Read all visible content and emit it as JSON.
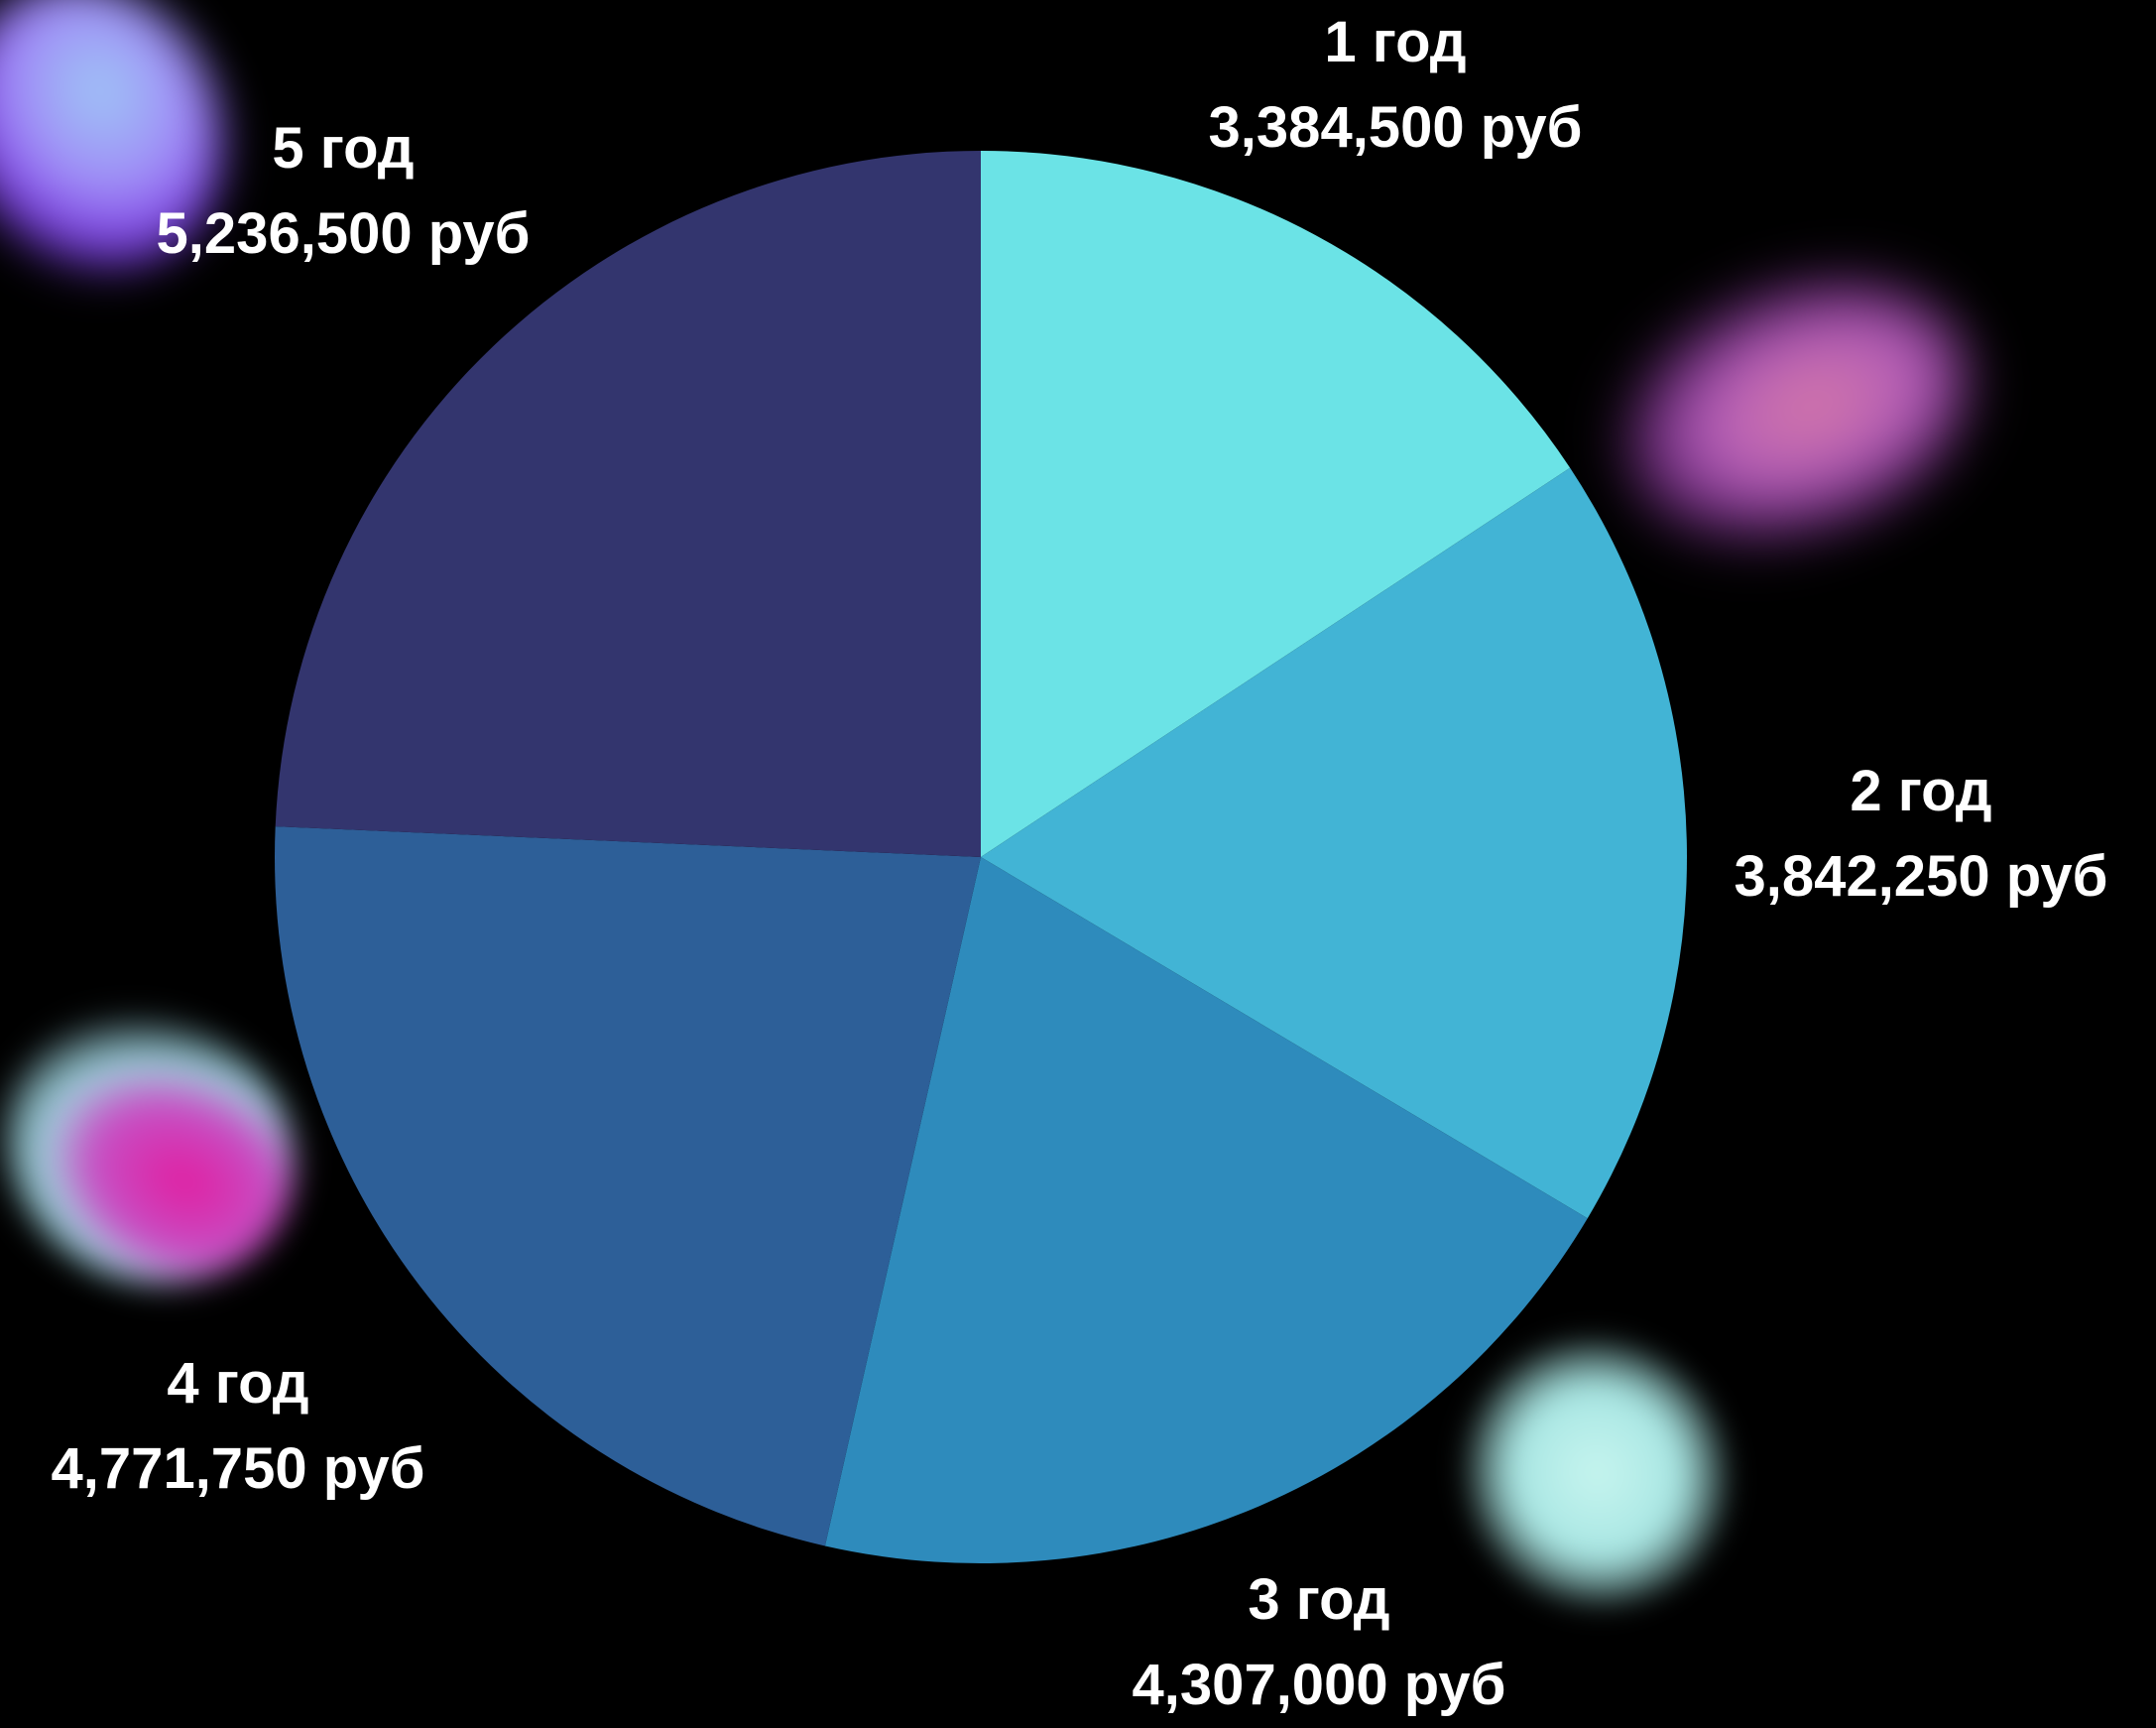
{
  "chart_data": {
    "type": "pie",
    "slices": [
      {
        "year": "1 год",
        "label": "3,384,500 руб",
        "value": 3384500,
        "color": "#6be3e6"
      },
      {
        "year": "2 год",
        "label": "3,842,250 руб",
        "value": 3842250,
        "color": "#42b4d5"
      },
      {
        "year": "3 год",
        "label": "4,307,000 руб",
        "value": 4307000,
        "color": "#2e8bbc"
      },
      {
        "year": "4 год",
        "label": "4,771,750 руб",
        "value": 4771750,
        "color": "#2d5f98"
      },
      {
        "year": "5 год",
        "label": "5,236,500 руб",
        "value": 5236500,
        "color": "#33356e"
      }
    ],
    "start": "12 o'clock",
    "direction": "clockwise",
    "legend": "none",
    "background": "#000000"
  }
}
